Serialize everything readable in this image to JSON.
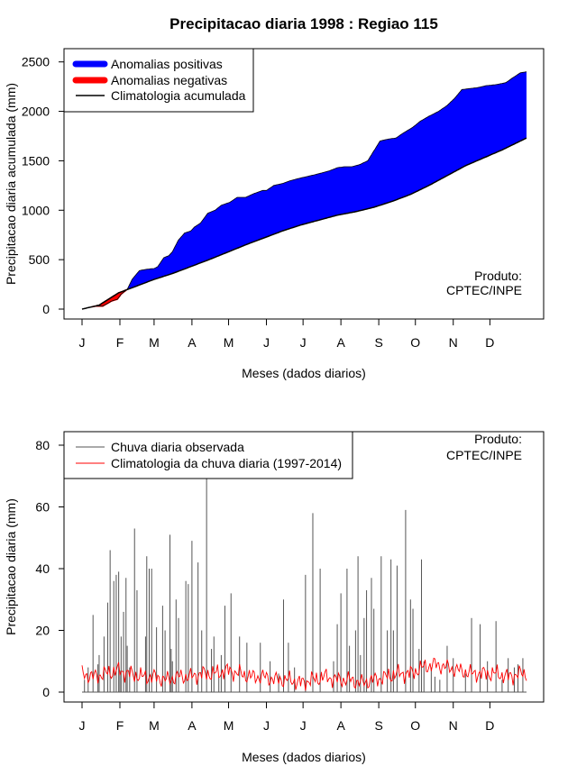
{
  "chart_data": [
    {
      "type": "area",
      "title": "Precipitacao diaria 1998 : Regiao 115",
      "xlabel": "Meses (dados diarios)",
      "ylabel": "Precipitacao diaria acumulada (mm)",
      "xlim": [
        1,
        365
      ],
      "ylim": [
        0,
        2500
      ],
      "yticks": [
        0,
        500,
        1000,
        1500,
        2000,
        2500
      ],
      "month_labels": [
        "J",
        "F",
        "M",
        "A",
        "M",
        "J",
        "J",
        "A",
        "S",
        "O",
        "N",
        "D"
      ],
      "month_days": [
        1,
        32,
        60,
        91,
        121,
        152,
        182,
        213,
        244,
        274,
        305,
        335
      ],
      "legend": [
        "Anomalias positivas",
        "Anomalias negativas",
        "Climatologia acumulada"
      ],
      "legend_position": "top-left",
      "note": "Produto:\nCPTEC/INPE",
      "colors": {
        "positive": "#0000ff",
        "negative": "#ff0000",
        "climatology": "#000000"
      },
      "observed_cumulative": {
        "x": [
          1,
          8,
          12,
          18,
          25,
          30,
          33,
          38,
          42,
          48,
          55,
          60,
          63,
          68,
          72,
          75,
          80,
          85,
          90,
          93,
          98,
          104,
          110,
          115,
          122,
          128,
          135,
          142,
          149,
          152,
          158,
          165,
          172,
          178,
          185,
          192,
          198,
          204,
          210,
          216,
          222,
          228,
          235,
          240,
          245,
          252,
          258,
          264,
          272,
          278,
          285,
          293,
          300,
          306,
          312,
          318,
          325,
          332,
          340,
          348,
          355,
          360,
          365
        ],
        "y": [
          0,
          20,
          30,
          30,
          80,
          100,
          150,
          200,
          300,
          390,
          405,
          410,
          430,
          520,
          540,
          580,
          700,
          770,
          790,
          830,
          870,
          970,
          1000,
          1050,
          1080,
          1130,
          1130,
          1170,
          1200,
          1200,
          1250,
          1270,
          1300,
          1320,
          1340,
          1360,
          1380,
          1400,
          1430,
          1440,
          1440,
          1460,
          1500,
          1600,
          1700,
          1720,
          1730,
          1780,
          1840,
          1900,
          1950,
          2000,
          2060,
          2130,
          2220,
          2230,
          2240,
          2260,
          2270,
          2290,
          2350,
          2390,
          2400
        ]
      },
      "climatology_cumulative": {
        "x": [
          1,
          15,
          31,
          45,
          60,
          75,
          90,
          105,
          120,
          135,
          150,
          165,
          180,
          195,
          210,
          225,
          240,
          255,
          270,
          285,
          300,
          315,
          330,
          345,
          365
        ],
        "y": [
          0,
          40,
          165,
          230,
          300,
          360,
          430,
          500,
          575,
          650,
          720,
          790,
          850,
          900,
          950,
          985,
          1030,
          1090,
          1160,
          1250,
          1350,
          1450,
          1530,
          1610,
          1730
        ]
      }
    },
    {
      "type": "bar",
      "title": "",
      "xlabel": "Meses (dados diarios)",
      "ylabel": "Precipitacao diaria (mm)",
      "xlim": [
        1,
        365
      ],
      "ylim": [
        0,
        80
      ],
      "yticks": [
        0,
        20,
        40,
        60,
        80
      ],
      "month_labels": [
        "J",
        "F",
        "M",
        "A",
        "M",
        "J",
        "J",
        "A",
        "S",
        "O",
        "N",
        "D"
      ],
      "month_days": [
        1,
        32,
        60,
        91,
        121,
        152,
        182,
        213,
        244,
        274,
        305,
        335
      ],
      "legend": [
        "Chuva diaria observada",
        "Climatologia da chuva diaria (1997-2014)"
      ],
      "legend_position": "top-left",
      "note": "Produto:\nCPTEC/INPE",
      "colors": {
        "observed": "#555555",
        "climatology": "#ff0000"
      },
      "observed_daily": {
        "day": [
          3,
          6,
          10,
          14,
          15,
          19,
          22,
          24,
          27,
          29,
          31,
          32,
          33,
          35,
          37,
          38,
          40,
          44,
          46,
          53,
          54,
          56,
          58,
          62,
          67,
          69,
          73,
          74,
          75,
          78,
          80,
          86,
          88,
          91,
          96,
          99,
          103,
          107,
          109,
          113,
          115,
          118,
          123,
          130,
          136,
          147,
          155,
          162,
          166,
          170,
          175,
          184,
          190,
          196,
          207,
          210,
          213,
          218,
          220,
          225,
          227,
          229,
          232,
          234,
          238,
          240,
          246,
          251,
          254,
          256,
          259,
          266,
          270,
          272,
          277,
          279,
          281,
          287,
          290,
          294,
          300,
          305,
          315,
          320,
          327,
          333,
          340,
          345,
          350,
          355,
          358,
          362
        ],
        "mm": [
          4,
          8,
          25,
          9,
          12,
          18,
          29,
          46,
          36,
          38,
          39,
          7,
          18,
          26,
          37,
          15,
          8,
          53,
          33,
          18,
          44,
          40,
          40,
          21,
          28,
          20,
          51,
          14,
          10,
          30,
          24,
          36,
          35,
          49,
          42,
          20,
          70,
          14,
          18,
          5,
          12,
          28,
          32,
          18,
          16,
          16,
          10,
          6,
          30,
          16,
          8,
          38,
          58,
          40,
          10,
          22,
          32,
          40,
          15,
          20,
          44,
          12,
          24,
          33,
          37,
          27,
          44,
          20,
          43,
          20,
          41,
          59,
          30,
          27,
          14,
          43,
          10,
          8,
          5,
          4,
          15,
          11,
          6,
          24,
          22,
          10,
          23,
          4,
          11,
          8,
          9,
          11
        ]
      },
      "climatology_daily": {
        "day": [
          1,
          10,
          20,
          30,
          40,
          50,
          60,
          70,
          80,
          90,
          100,
          110,
          120,
          130,
          140,
          150,
          160,
          170,
          180,
          190,
          200,
          210,
          220,
          230,
          240,
          250,
          260,
          270,
          280,
          290,
          300,
          310,
          320,
          330,
          340,
          350,
          360,
          365
        ],
        "mm": [
          6,
          5,
          6,
          7,
          6,
          5,
          5,
          4,
          5,
          5,
          6,
          6,
          7,
          6,
          5,
          5,
          4,
          4,
          3,
          4,
          5,
          4,
          4,
          3,
          4,
          5,
          6,
          6,
          8,
          9,
          8,
          7,
          6,
          6,
          6,
          5,
          6,
          6
        ]
      }
    }
  ]
}
